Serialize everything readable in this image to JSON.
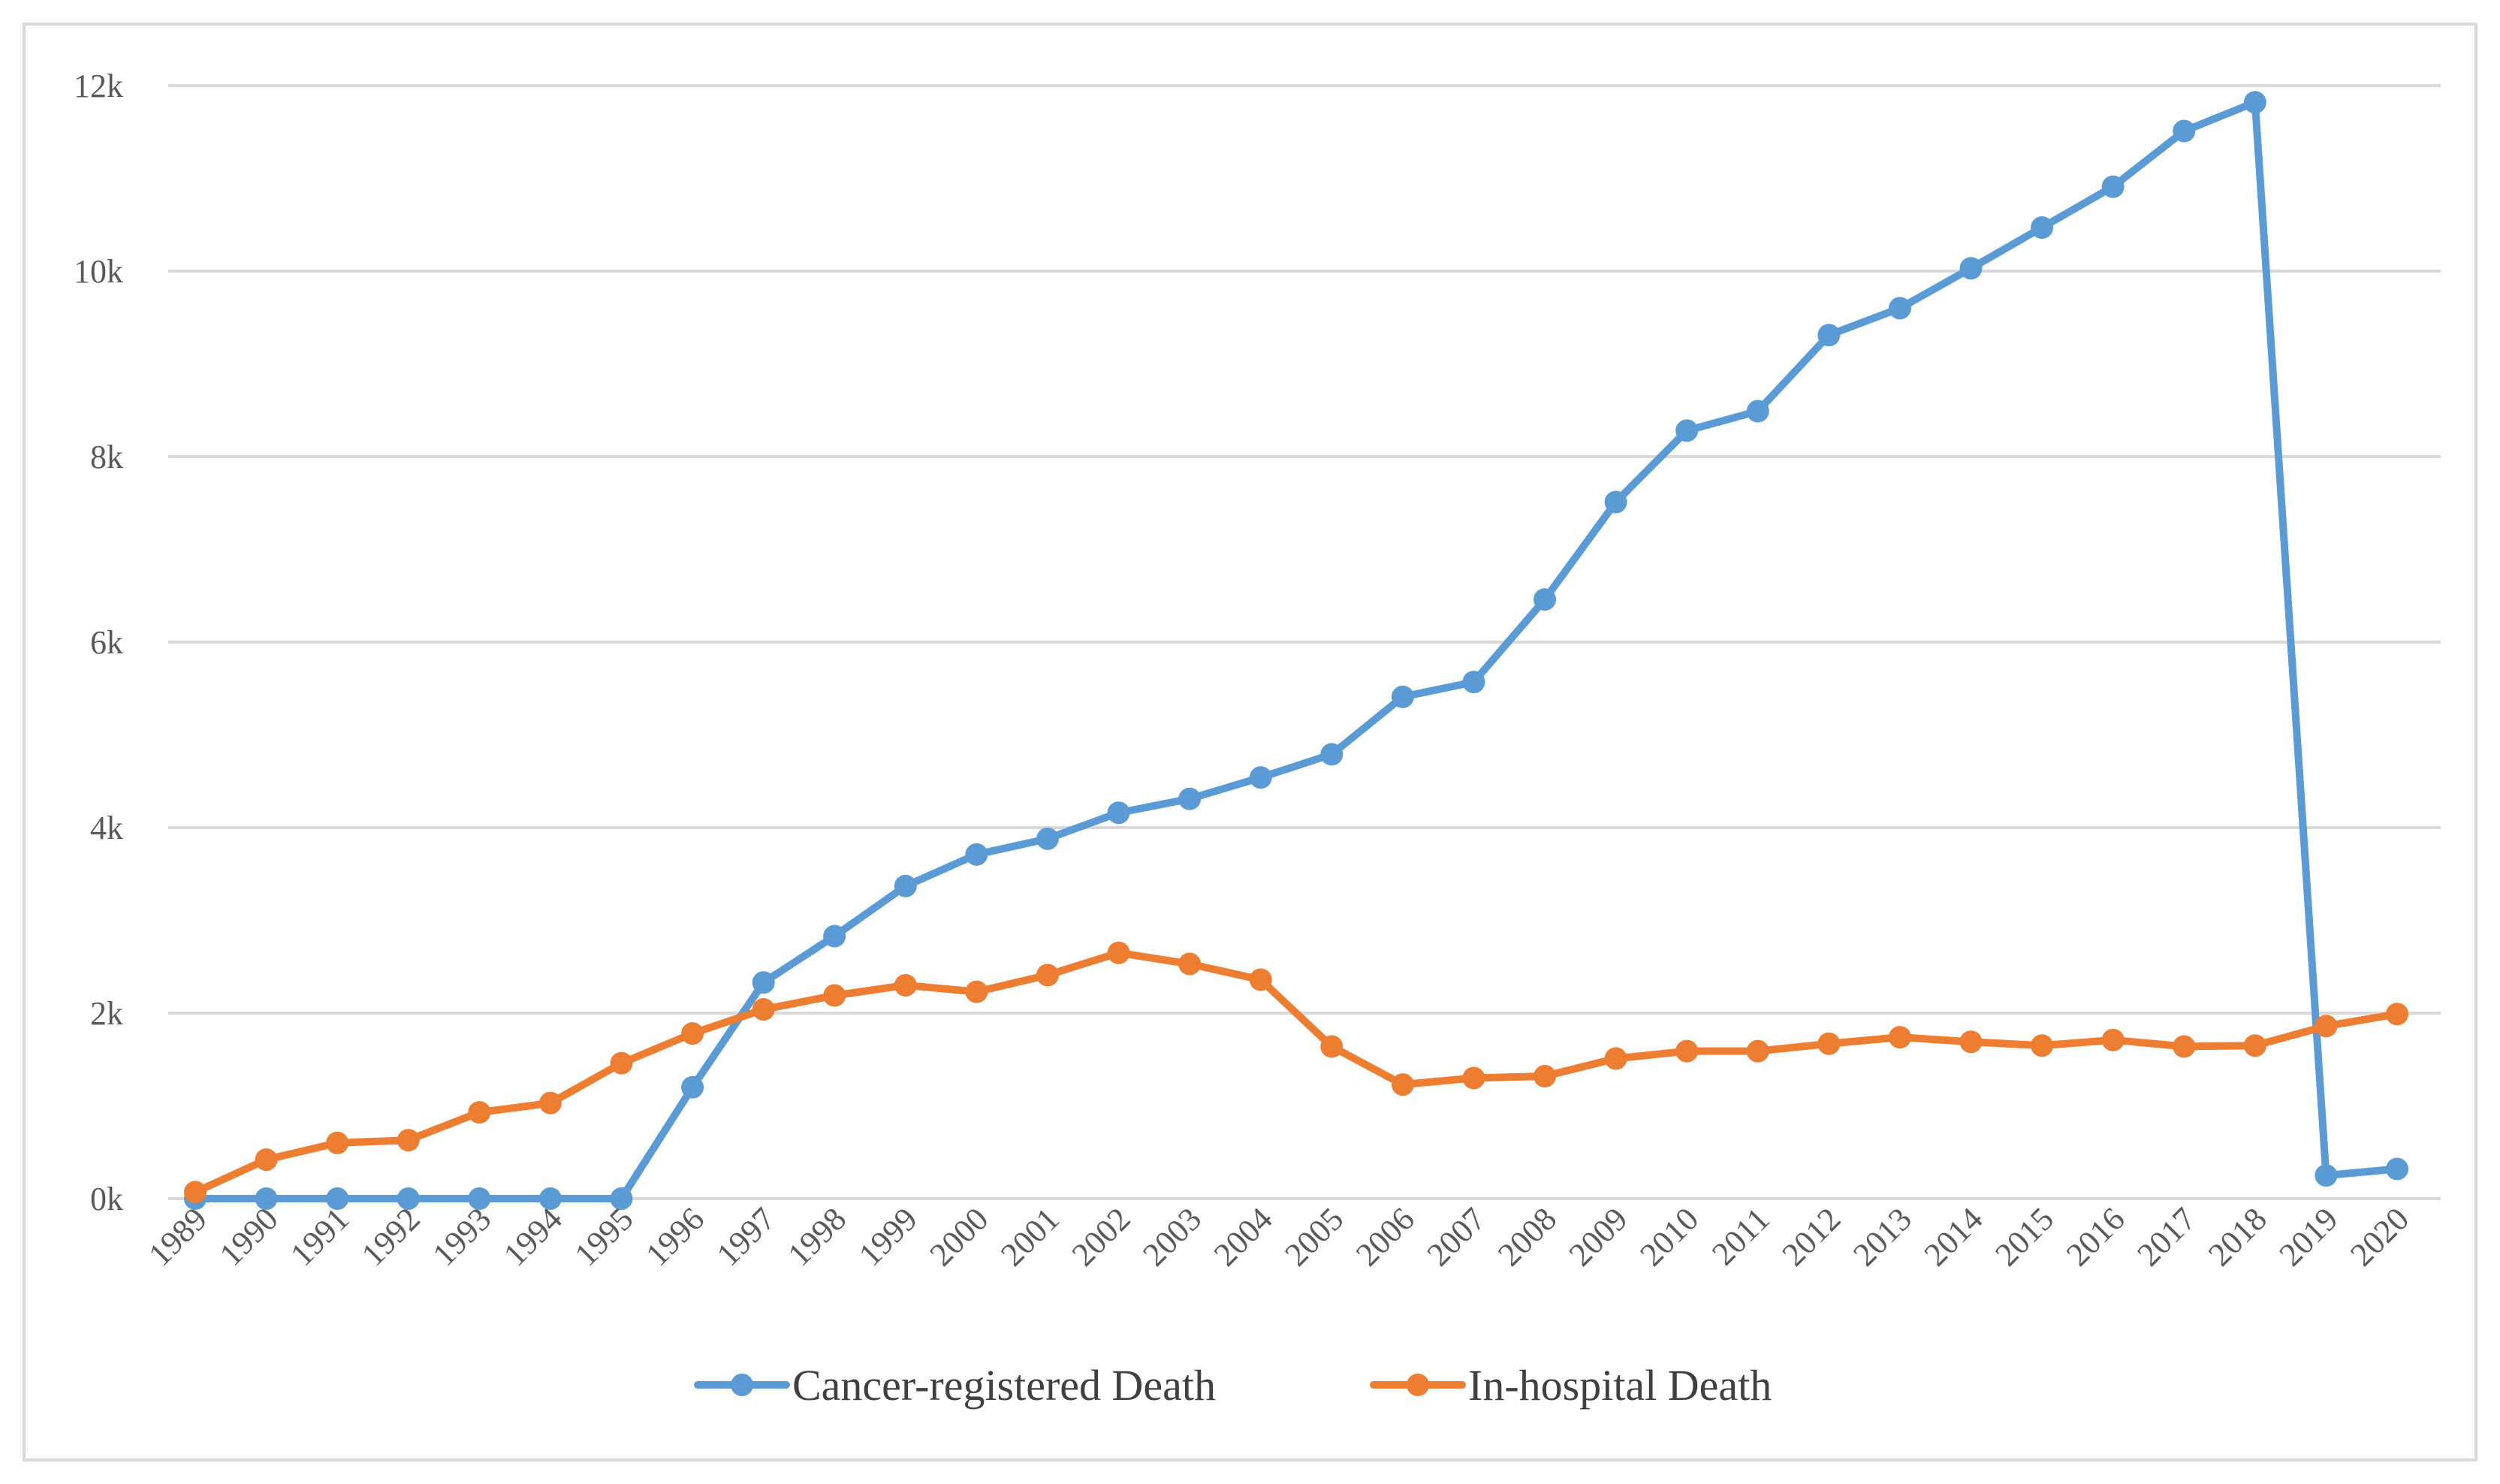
{
  "chart_data": {
    "type": "line",
    "title": "",
    "xlabel": "",
    "ylabel": "",
    "categories": [
      "1989",
      "1990",
      "1991",
      "1992",
      "1993",
      "1994",
      "1995",
      "1996",
      "1997",
      "1998",
      "1999",
      "2000",
      "2001",
      "2002",
      "2003",
      "2004",
      "2005",
      "2006",
      "2007",
      "2008",
      "2009",
      "2010",
      "2011",
      "2012",
      "2013",
      "2014",
      "2015",
      "2016",
      "2017",
      "2018",
      "2019",
      "2020"
    ],
    "ylim": [
      0,
      12000
    ],
    "yticks": [
      0,
      2000,
      4000,
      6000,
      8000,
      10000,
      12000
    ],
    "ytick_labels": [
      "0k",
      "2k",
      "4k",
      "6k",
      "8k",
      "10k",
      "12k"
    ],
    "grid": true,
    "legend_position": "bottom",
    "series": [
      {
        "name": "Cancer-registered Death",
        "color": "#5b9bd5",
        "values": [
          0,
          0,
          0,
          0,
          0,
          0,
          0,
          1200,
          2330,
          2830,
          3370,
          3710,
          3880,
          4160,
          4310,
          4540,
          4790,
          5410,
          5570,
          6460,
          7510,
          8280,
          8490,
          9310,
          9600,
          10030,
          10470,
          10910,
          11510,
          11820,
          250,
          320
        ]
      },
      {
        "name": "In-hospital Death",
        "color": "#ed7d31",
        "values": [
          70,
          420,
          600,
          630,
          930,
          1030,
          1460,
          1780,
          2040,
          2190,
          2300,
          2230,
          2410,
          2650,
          2530,
          2360,
          1640,
          1230,
          1300,
          1320,
          1510,
          1590,
          1590,
          1670,
          1740,
          1690,
          1650,
          1710,
          1640,
          1650,
          1860,
          1990
        ]
      }
    ]
  }
}
